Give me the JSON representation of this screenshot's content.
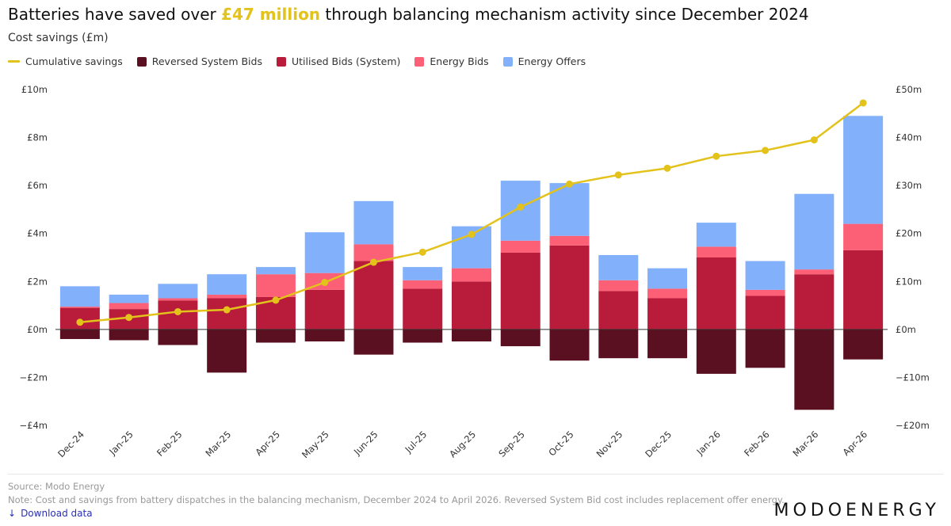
{
  "header": {
    "title_before": "Batteries have saved over ",
    "title_highlight": "£47 million",
    "title_after": " through balancing mechanism activity since December 2024",
    "subtitle": "Cost savings (£m)"
  },
  "legend": [
    {
      "label": "Cumulative savings",
      "color": "#e3c21b",
      "kind": "line"
    },
    {
      "label": "Reversed System Bids",
      "color": "#5a1020",
      "kind": "box"
    },
    {
      "label": "Utilised Bids (System)",
      "color": "#b81c3a",
      "kind": "box"
    },
    {
      "label": "Energy Bids",
      "color": "#fb6076",
      "kind": "box"
    },
    {
      "label": "Energy Offers",
      "color": "#82b0fa",
      "kind": "box"
    }
  ],
  "chart_data": {
    "type": "bar",
    "stacked": true,
    "categories": [
      "Dec-24",
      "Jan-25",
      "Feb-25",
      "Mar-25",
      "Apr-25",
      "May-25",
      "Jun-25",
      "Jul-25",
      "Aug-25",
      "Sep-25",
      "Oct-25",
      "Nov-25",
      "Dec-25",
      "Jan-26",
      "Feb-26",
      "Mar-26",
      "Apr-26"
    ],
    "series": [
      {
        "name": "Reversed System Bids",
        "color": "#5a1020",
        "axis": "left",
        "values": [
          -0.4,
          -0.45,
          -0.65,
          -1.8,
          -0.55,
          -0.5,
          -1.05,
          -0.55,
          -0.5,
          -0.7,
          -1.3,
          -1.2,
          -1.2,
          -1.85,
          -1.6,
          -3.35,
          -1.25
        ]
      },
      {
        "name": "Utilised Bids (System)",
        "color": "#b81c3a",
        "axis": "left",
        "values": [
          0.9,
          0.85,
          1.2,
          1.3,
          1.35,
          1.65,
          2.85,
          1.7,
          2.0,
          3.2,
          3.5,
          1.6,
          1.3,
          3.0,
          1.4,
          2.3,
          3.3
        ]
      },
      {
        "name": "Energy Bids",
        "color": "#fb6076",
        "axis": "left",
        "values": [
          0.05,
          0.25,
          0.1,
          0.15,
          0.95,
          0.7,
          0.7,
          0.35,
          0.55,
          0.5,
          0.4,
          0.45,
          0.4,
          0.45,
          0.25,
          0.2,
          1.1
        ]
      },
      {
        "name": "Energy Offers",
        "color": "#82b0fa",
        "axis": "left",
        "values": [
          0.85,
          0.35,
          0.6,
          0.85,
          0.3,
          1.7,
          1.8,
          0.55,
          1.75,
          2.5,
          2.2,
          1.05,
          0.85,
          1.0,
          1.2,
          3.15,
          4.5
        ]
      },
      {
        "name": "Cumulative savings",
        "color": "#e3c21b",
        "axis": "right",
        "type": "line",
        "values": [
          1.5,
          2.5,
          3.7,
          4.1,
          6.1,
          9.8,
          14.0,
          16.1,
          19.8,
          25.5,
          30.3,
          32.2,
          33.6,
          36.1,
          37.3,
          39.5,
          47.2
        ]
      }
    ],
    "y_left": {
      "min": -4,
      "max": 10,
      "ticks": [
        10,
        8,
        6,
        4,
        2,
        0,
        -2,
        -4
      ],
      "tick_labels": [
        "£10m",
        "£8m",
        "£6m",
        "£4m",
        "£2m",
        "£0m",
        "−£2m",
        "−£4m"
      ]
    },
    "y_right": {
      "min": -20,
      "max": 50,
      "ticks": [
        50,
        40,
        30,
        20,
        10,
        0,
        -10,
        -20
      ],
      "tick_labels": [
        "£50m",
        "£40m",
        "£30m",
        "£20m",
        "£10m",
        "£0m",
        "−£10m",
        "−£20m"
      ]
    },
    "grid": false,
    "legend_position": "top-left"
  },
  "footer": {
    "source": "Source: Modo Energy",
    "note": "Note: Cost and savings from battery dispatches in the balancing mechanism, December 2024 to April 2026. Reversed System Bid cost includes replacement offer energy.",
    "download_label": "Download data",
    "brand": "MODOENERGY"
  }
}
